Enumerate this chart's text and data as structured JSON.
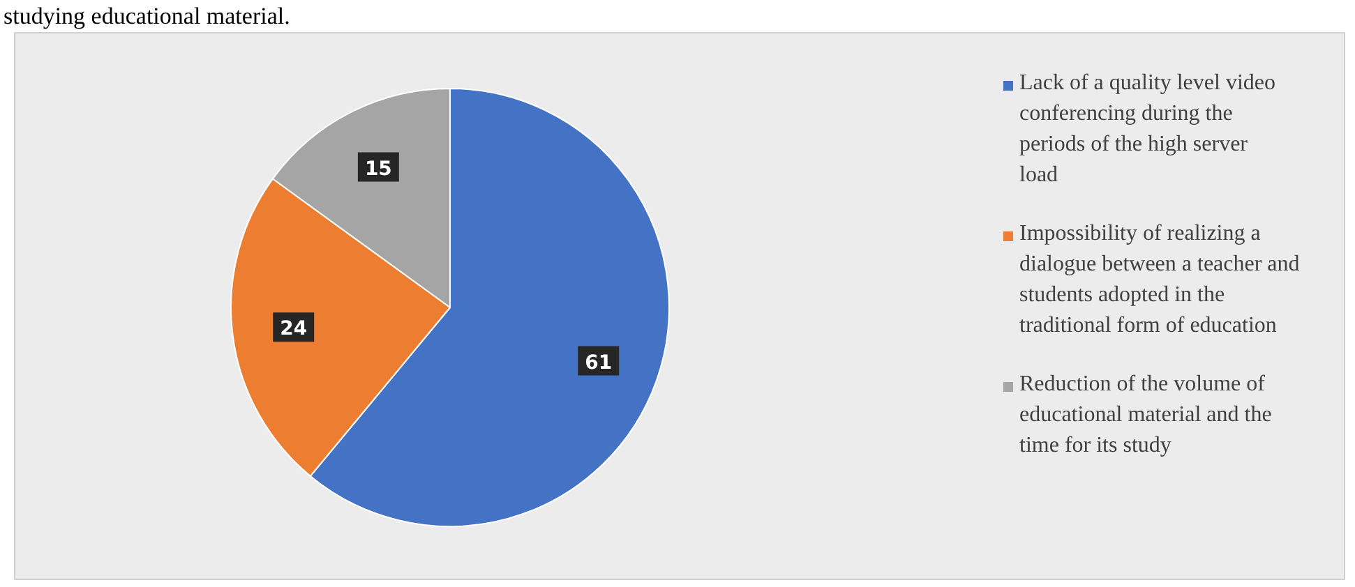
{
  "chart_data": {
    "type": "pie",
    "categories": [
      "Lack of a quality level video conferencing during the periods of the high server load",
      "Impossibility of realizing a dialogue between a teacher and students adopted in the traditional form of education",
      "Reduction of the volume of educational material and the time for its study"
    ],
    "values": [
      61,
      24,
      15
    ],
    "colors": [
      "#4472c4",
      "#ed7d31",
      "#a5a5a5"
    ],
    "data_labels": true,
    "legend": "right",
    "annotations": [
      "studying educational material."
    ]
  }
}
